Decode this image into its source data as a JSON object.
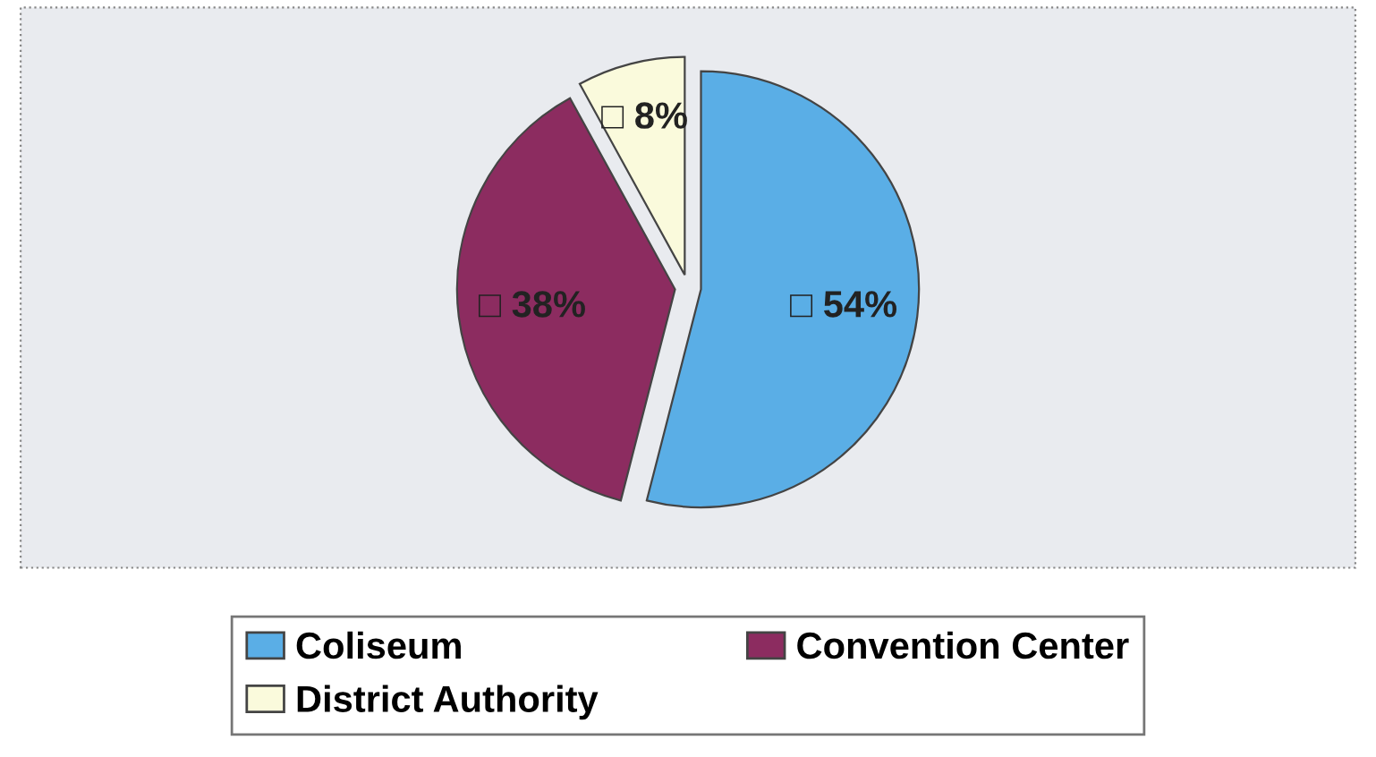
{
  "chart_data": {
    "type": "pie",
    "categories": [
      "Coliseum",
      "Convention Center",
      "District Authority"
    ],
    "values": [
      54,
      38,
      8
    ],
    "colors": [
      "#5aaee6",
      "#8c2c60",
      "#fafadc"
    ],
    "value_labels": [
      "□ 54%",
      "□ 38%",
      "□ 8%"
    ],
    "legend": "bottom"
  }
}
